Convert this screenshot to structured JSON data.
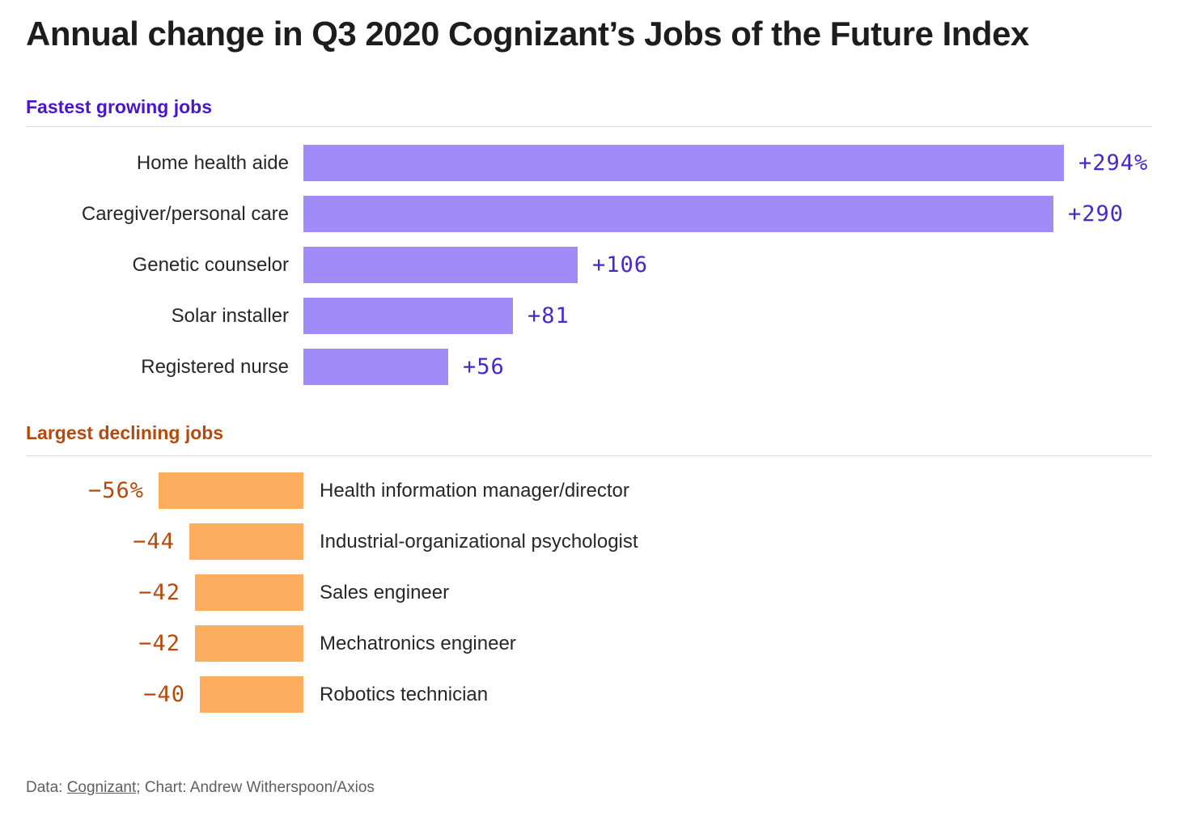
{
  "title": "Annual change in Q3 2020 Cognizant’s Jobs of the Future Index",
  "colors": {
    "growing_bar": "#a18bf8",
    "growing_text": "#4629c9",
    "growing_header": "#4a16c9",
    "declining_bar": "#fcae5e",
    "declining_text": "#b54a0c",
    "title_text": "#1d1d1d",
    "label_text": "#272727",
    "divider": "#d9d9d9",
    "footer_text": "#5f5f5f",
    "background": "#ffffff"
  },
  "chart_data": [
    {
      "type": "bar",
      "orientation": "horizontal",
      "section_label": "Fastest growing jobs",
      "categories": [
        "Home health aide",
        "Caregiver/personal care",
        "Genetic counselor",
        "Solar installer",
        "Registered nurse"
      ],
      "values": [
        294,
        290,
        106,
        81,
        56
      ],
      "value_labels": [
        "+294%",
        "+290",
        "+106",
        "+81",
        "+56"
      ],
      "xlim": [
        0,
        294
      ],
      "grid": false,
      "legend": false,
      "value_label_position": "right-of-bar"
    },
    {
      "type": "bar",
      "orientation": "horizontal",
      "section_label": "Largest declining jobs",
      "categories": [
        "Health information manager/director",
        "Industrial-organizational psychologist",
        "Sales engineer",
        "Mechatronics engineer",
        "Robotics technician"
      ],
      "values": [
        -56,
        -44,
        -42,
        -42,
        -40
      ],
      "value_labels": [
        "−56%",
        "−44",
        "−42",
        "−42",
        "−40"
      ],
      "xlim": [
        -294,
        0
      ],
      "grid": false,
      "legend": false,
      "value_label_position": "left-of-bar"
    }
  ],
  "footer": {
    "prefix": "Data: ",
    "source_link": "Cognizant",
    "suffix": "; Chart: Andrew Witherspoon/Axios"
  }
}
